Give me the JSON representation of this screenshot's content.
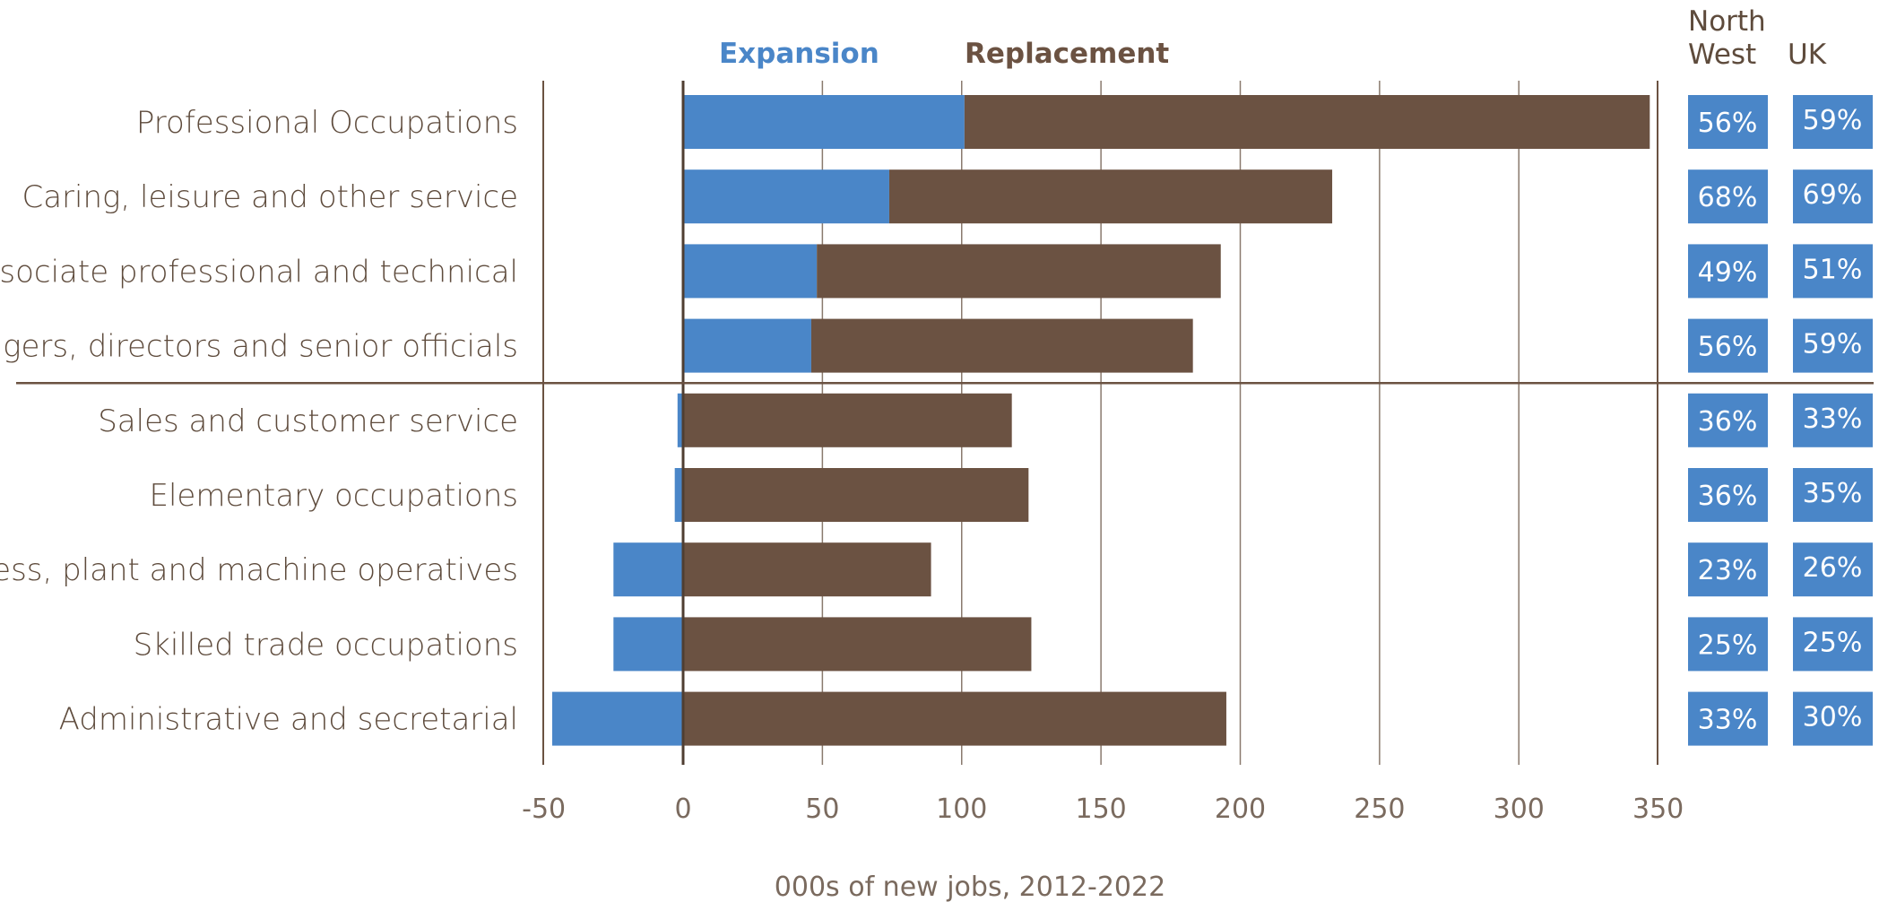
{
  "chart_data": {
    "type": "bar",
    "stacked": true,
    "orientation": "horizontal",
    "categories": [
      "Professional Occupations",
      "Caring, leisure and other service",
      "Associate professional and technical",
      "Managers, directors and senior officials",
      "Sales and customer service",
      "Elementary occupations",
      "Process, plant and machine operatives",
      "Skilled trade occupations",
      "Administrative and secretarial"
    ],
    "series": [
      {
        "name": "Expansion",
        "values": [
          101,
          74,
          48,
          46,
          -2,
          -3,
          -25,
          -25,
          -47
        ]
      },
      {
        "name": "Replacement",
        "values": [
          246,
          159,
          145,
          137,
          118,
          124,
          89,
          125,
          195
        ]
      }
    ],
    "series_colors": [
      "#4a86c8",
      "#6b5242"
    ],
    "xlabel": "000s of new jobs, 2012-2022",
    "ylabel": "",
    "xlim": [
      -50,
      350
    ],
    "xticks": [
      "-50",
      "0",
      "50",
      "100",
      "150",
      "200",
      "250",
      "300",
      "350"
    ],
    "grid": true,
    "legend_position": "top",
    "group_divider_after_index": 3,
    "share_columns": {
      "headers": [
        "North\nWest",
        "UK"
      ],
      "north_west": [
        "56%",
        "68%",
        "49%",
        "56%",
        "36%",
        "36%",
        "23%",
        "25%",
        "33%"
      ],
      "uk": [
        "59%",
        "69%",
        "51%",
        "59%",
        "33%",
        "35%",
        "26%",
        "25%",
        "30%"
      ],
      "box_color": "#4a86c8"
    }
  }
}
